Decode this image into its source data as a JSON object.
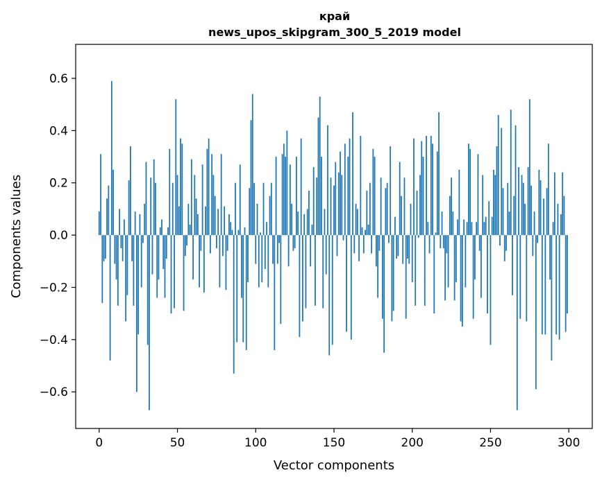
{
  "chart_data": {
    "type": "bar",
    "title_lines": [
      "край",
      "news_upos_skipgram_300_5_2019 model"
    ],
    "xlabel": "Vector components",
    "ylabel": "Components values",
    "xlim": [
      -15,
      315
    ],
    "ylim": [
      -0.74,
      0.73
    ],
    "xticks": [
      0,
      50,
      100,
      150,
      200,
      250,
      300
    ],
    "xtick_labels": [
      "0",
      "50",
      "100",
      "150",
      "200",
      "250",
      "300"
    ],
    "yticks": [
      -0.6,
      -0.4,
      -0.2,
      0.0,
      0.2,
      0.4,
      0.6
    ],
    "ytick_labels": [
      "−0.6",
      "−0.4",
      "−0.2",
      "0.0",
      "0.2",
      "0.4",
      "0.6"
    ],
    "bar_color": "#1f77b4",
    "grid": false,
    "values": [
      0.09,
      0.31,
      -0.26,
      -0.1,
      -0.09,
      0.14,
      0.19,
      -0.48,
      0.59,
      0.25,
      -0.11,
      -0.17,
      -0.27,
      0.1,
      -0.05,
      -0.1,
      0.06,
      -0.33,
      -0.23,
      0.21,
      0.34,
      -0.1,
      -0.27,
      0.09,
      -0.6,
      -0.38,
      0.08,
      -0.2,
      -0.03,
      0.12,
      0.28,
      -0.42,
      -0.67,
      0.22,
      -0.15,
      0.29,
      0.2,
      -0.24,
      -0.17,
      0.03,
      0.06,
      -0.13,
      -0.24,
      -0.09,
      0.03,
      0.33,
      -0.3,
      0.2,
      -0.28,
      0.52,
      0.23,
      0.11,
      0.37,
      0.35,
      -0.29,
      -0.08,
      -0.04,
      0.12,
      0.04,
      0.29,
      -0.17,
      0.23,
      0.14,
      0.08,
      -0.2,
      -0.06,
      0.27,
      -0.22,
      0.11,
      0.33,
      0.37,
      -0.07,
      0.31,
      0.23,
      0.15,
      -0.05,
      0.1,
      -0.2,
      0.31,
      -0.08,
      0.11,
      -0.21,
      -0.06,
      0.08,
      0.05,
      0.02,
      -0.53,
      0.2,
      -0.41,
      0.02,
      0.27,
      -0.24,
      -0.41,
      0.03,
      -0.44,
      -0.18,
      0.18,
      0.44,
      0.54,
      0.2,
      -0.11,
      0.12,
      -0.2,
      0.01,
      -0.18,
      0.2,
      -0.13,
      0.05,
      -0.2,
      0.15,
      0.2,
      -0.11,
      -0.44,
      0.3,
      -0.11,
      -0.03,
      -0.34,
      0.31,
      0.35,
      0.3,
      0.4,
      -0.12,
      0.27,
      0.12,
      -0.06,
      -0.05,
      0.3,
      0.09,
      -0.39,
      0.37,
      -0.33,
      0.08,
      -0.28,
      0.1,
      0.17,
      -0.12,
      0.04,
      0.26,
      -0.27,
      0.22,
      0.45,
      0.53,
      0.3,
      -0.28,
      0.1,
      -0.15,
      0.42,
      -0.46,
      0.22,
      -0.42,
      0.19,
      0.28,
      -0.08,
      0.24,
      0.32,
      0.23,
      -0.02,
      0.35,
      -0.37,
      0.3,
      0.37,
      -0.4,
      0.47,
      -0.07,
      0.12,
      0.1,
      -0.1,
      0.38,
      0.03,
      -0.07,
      0.02,
      0.17,
      0.04,
      0.2,
      -0.07,
      0.33,
      0.3,
      -0.12,
      -0.24,
      -0.06,
      0.22,
      -0.32,
      -0.45,
      0.18,
      0.2,
      -0.03,
      0.34,
      -0.33,
      -0.29,
      0.07,
      -0.09,
      -0.08,
      0.28,
      0.15,
      -0.11,
      0.22,
      -0.32,
      -0.09,
      -0.11,
      0.12,
      -0.18,
      0.37,
      -0.27,
      0.17,
      -0.01,
      0.23,
      0.36,
      0.3,
      -0.27,
      0.38,
      0.05,
      -0.07,
      0.38,
      0.35,
      -0.3,
      0.01,
      0.32,
      0.47,
      -0.05,
      0.09,
      -0.05,
      -0.25,
      -0.07,
      -0.2,
      0.15,
      0.22,
      0.09,
      -0.25,
      -0.18,
      0.06,
      0.25,
      -0.33,
      -0.35,
      0.06,
      -0.2,
      0.05,
      0.35,
      0.33,
      0.05,
      -0.32,
      -0.17,
      0.05,
      0.31,
      -0.06,
      -0.24,
      0.23,
      0.05,
      0.07,
      -0.3,
      0.13,
      -0.42,
      0.07,
      0.25,
      0.23,
      0.34,
      0.46,
      -0.04,
      0.41,
      0.18,
      -0.1,
      -0.06,
      0.2,
      0.09,
      0.48,
      -0.23,
      0.15,
      0.42,
      -0.67,
      0.26,
      -0.32,
      0.23,
      0.2,
      0.12,
      -0.33,
      0.26,
      0.52,
      0.19,
      -0.08,
      0.09,
      -0.59,
      -0.03,
      0.25,
      0.21,
      -0.38,
      0.14,
      -0.38,
      0.18,
      0.35,
      -0.17,
      -0.48,
      0.05,
      0.24,
      -0.38,
      0.12,
      -0.4,
      0.08,
      0.24,
      0.15,
      -0.37,
      -0.3
    ]
  }
}
